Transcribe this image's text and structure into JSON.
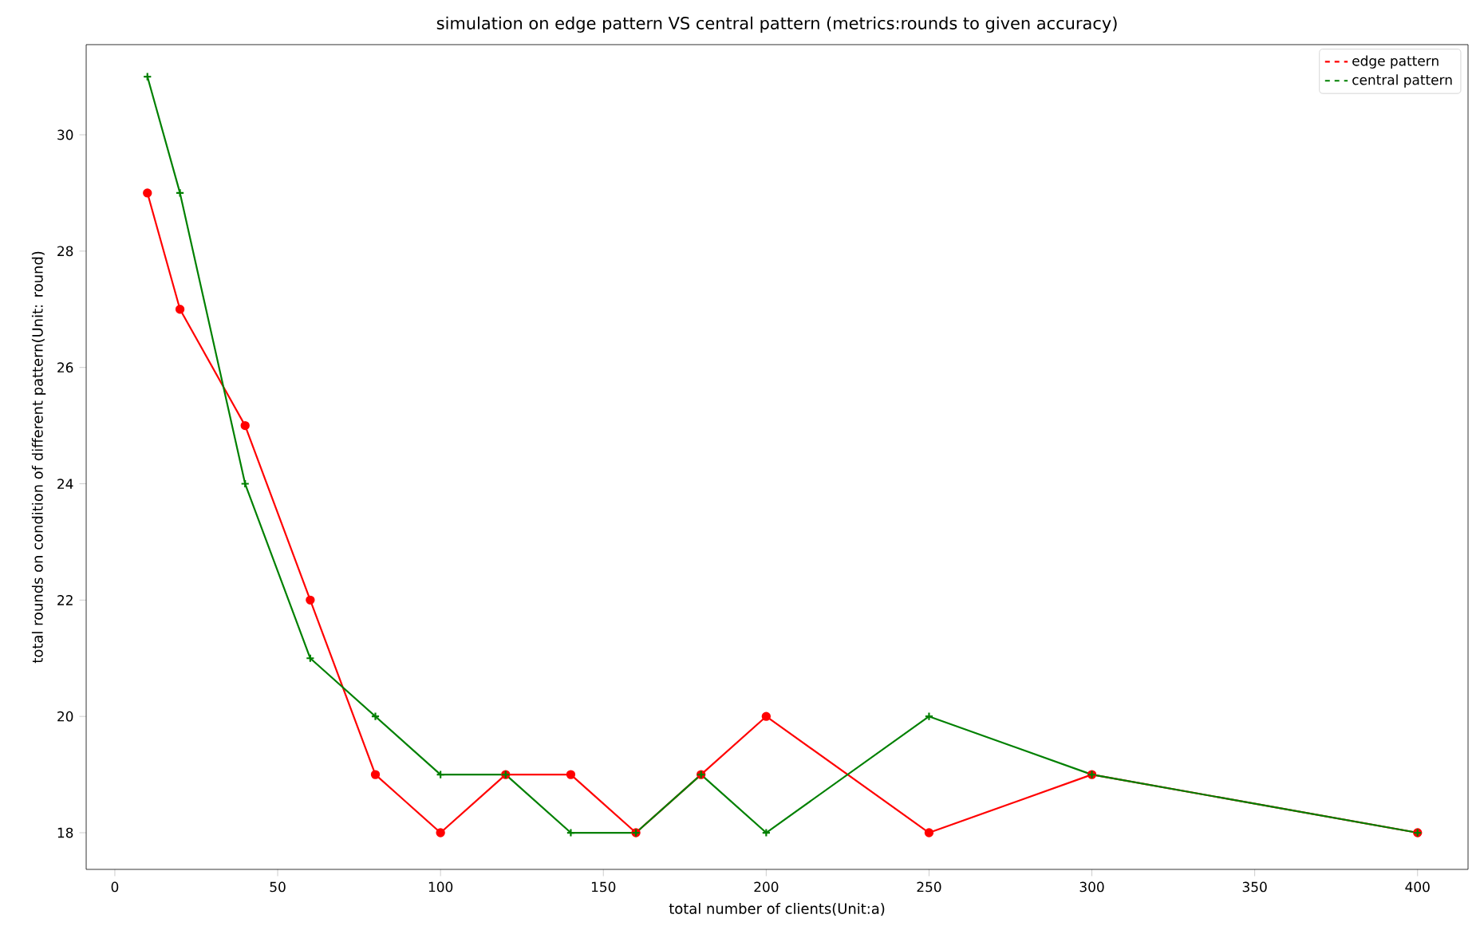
{
  "chart_data": {
    "type": "line",
    "title": "simulation on edge pattern VS central pattern (metrics:rounds to given accuracy)",
    "xlabel": "total number of clients(Unit:a)",
    "ylabel": "total rounds on condition of different pattern(Unit: round)",
    "x": [
      10,
      20,
      40,
      60,
      80,
      100,
      120,
      140,
      160,
      180,
      200,
      250,
      300,
      400
    ],
    "series": [
      {
        "name": "edge pattern",
        "color": "#ff0000",
        "marker": "circle",
        "values": [
          29,
          27,
          25,
          22,
          19,
          18,
          19,
          19,
          18,
          19,
          20,
          18,
          19,
          18
        ]
      },
      {
        "name": "central pattern",
        "color": "#008000",
        "marker": "cross",
        "values": [
          31,
          29,
          24,
          21,
          20,
          19,
          19,
          18,
          18,
          19,
          18,
          20,
          19,
          18
        ]
      }
    ],
    "xlim": [
      -8.8,
      415.5
    ],
    "ylim": [
      17.37,
      31.55
    ],
    "xticks": [
      0,
      50,
      100,
      150,
      200,
      250,
      300,
      350,
      400
    ],
    "yticks": [
      18,
      20,
      22,
      24,
      26,
      28,
      30
    ],
    "line_style": "solid",
    "legend": "top right",
    "grid": false
  }
}
